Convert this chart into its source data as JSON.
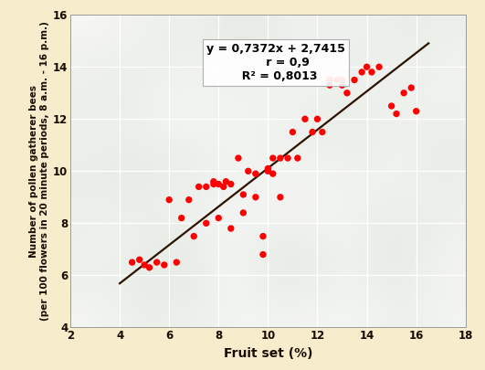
{
  "scatter_x": [
    4.5,
    4.8,
    5.0,
    5.2,
    5.5,
    5.8,
    6.0,
    6.3,
    6.5,
    6.8,
    7.0,
    7.2,
    7.5,
    7.5,
    7.8,
    7.8,
    8.0,
    8.0,
    8.2,
    8.3,
    8.5,
    8.5,
    8.8,
    9.0,
    9.0,
    9.2,
    9.5,
    9.5,
    9.8,
    9.8,
    10.0,
    10.0,
    10.2,
    10.2,
    10.5,
    10.5,
    10.8,
    11.0,
    11.2,
    11.5,
    11.8,
    12.0,
    12.2,
    12.5,
    12.5,
    12.8,
    13.0,
    13.0,
    13.2,
    13.5,
    13.8,
    14.0,
    14.2,
    14.5,
    15.0,
    15.2,
    15.5,
    15.8,
    16.0
  ],
  "scatter_y": [
    6.5,
    6.6,
    6.4,
    6.3,
    6.5,
    6.4,
    8.9,
    6.5,
    8.2,
    8.9,
    7.5,
    9.4,
    8.0,
    9.4,
    9.5,
    9.6,
    8.2,
    9.5,
    9.4,
    9.6,
    7.8,
    9.5,
    10.5,
    8.4,
    9.1,
    10.0,
    9.0,
    9.9,
    7.5,
    6.8,
    10.0,
    10.1,
    9.9,
    10.5,
    9.0,
    10.5,
    10.5,
    11.5,
    10.5,
    12.0,
    11.5,
    12.0,
    11.5,
    13.5,
    13.3,
    13.5,
    13.3,
    13.5,
    13.0,
    13.5,
    13.8,
    14.0,
    13.8,
    14.0,
    12.5,
    12.2,
    13.0,
    13.2,
    12.3
  ],
  "dot_color": "#ff0000",
  "dot_size": 28,
  "line_color": "#2d1200",
  "line_width": 1.6,
  "slope": 0.7372,
  "intercept": 2.7415,
  "equation_text": "y = 0,7372x + 2,7415",
  "r_text": "r = 0,9",
  "r2_text": "R² = 0,8013",
  "xlabel": "Fruit set (%)",
  "ylabel": "Number of pollen gatherer bees\n(per 100 flowers in 20 minute periods, 8 a.m. - 16 p.m.)",
  "xlim": [
    2,
    18
  ],
  "ylim": [
    4,
    16
  ],
  "xticks": [
    2,
    4,
    6,
    8,
    10,
    12,
    14,
    16,
    18
  ],
  "yticks": [
    4,
    6,
    8,
    10,
    12,
    14,
    16
  ],
  "bg_outer": "#f5edcc",
  "xlabel_fontsize": 10,
  "ylabel_fontsize": 7.5,
  "tick_fontsize": 8.5,
  "annotation_fontsize": 9,
  "line_x_start": 4.0,
  "line_x_end": 16.5
}
